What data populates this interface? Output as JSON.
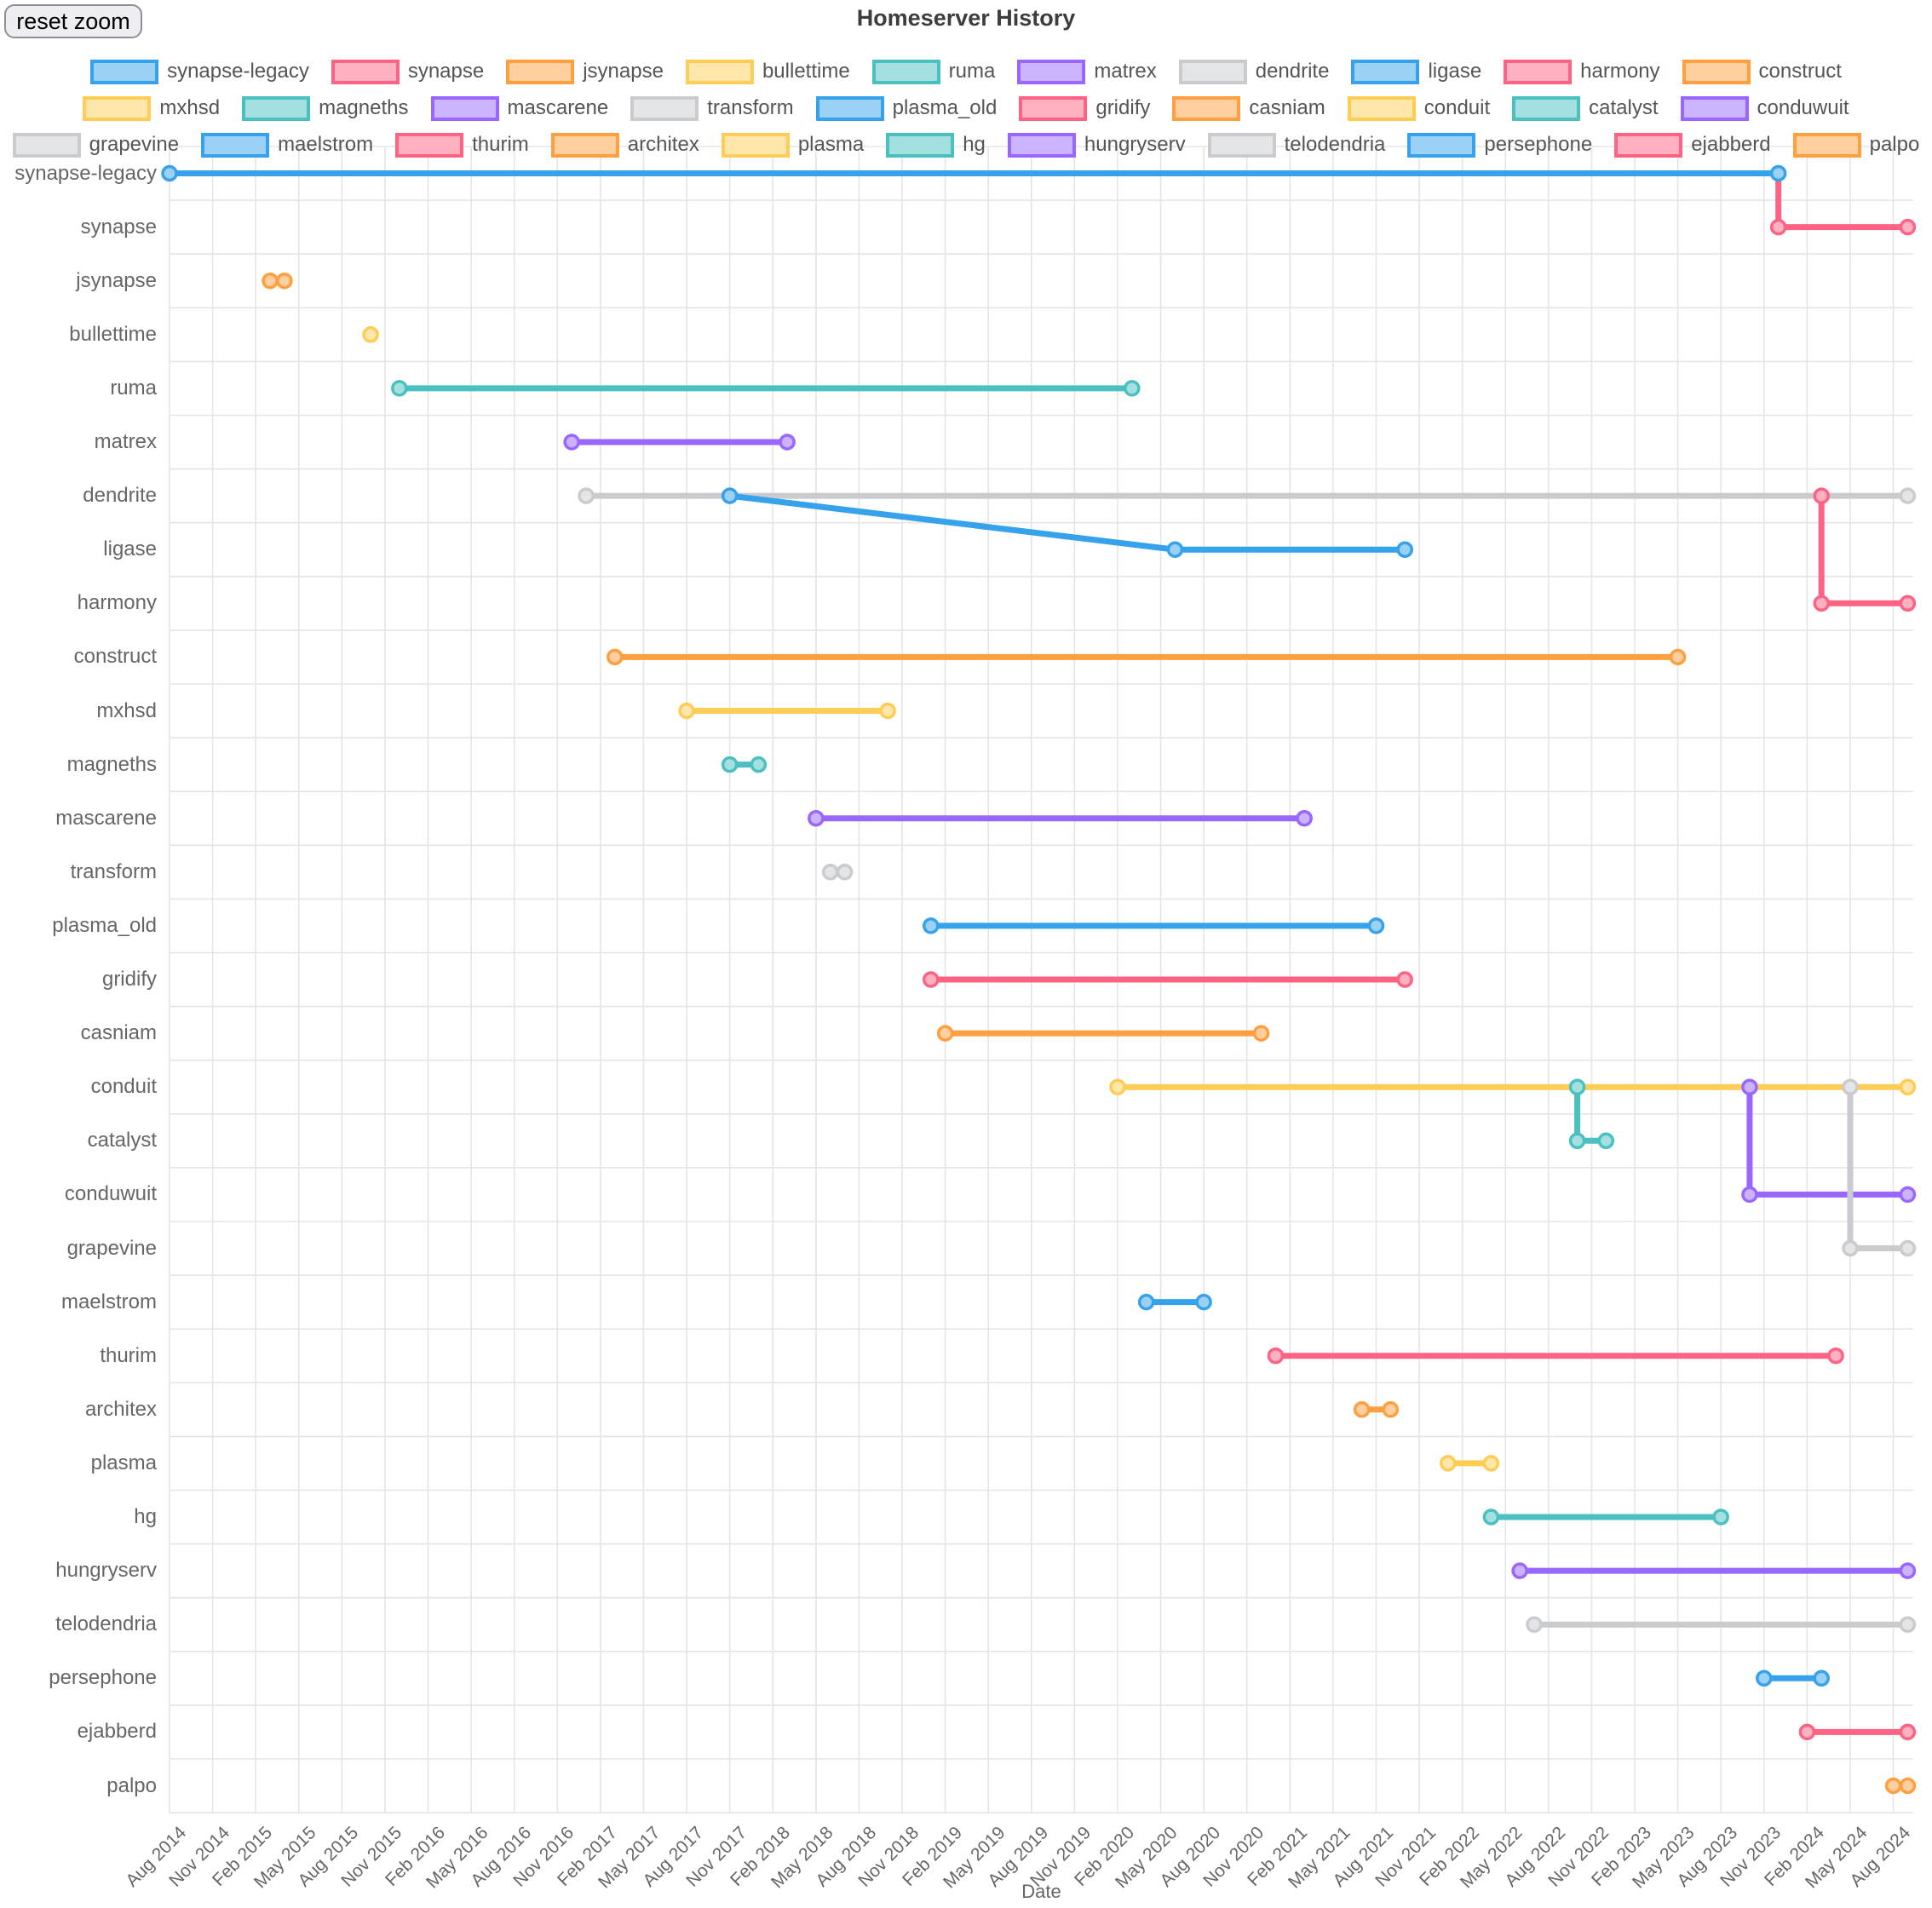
{
  "ui": {
    "reset_zoom_label": "reset zoom"
  },
  "chart_data": {
    "type": "line",
    "title": "Homeserver History",
    "xlabel": "Date",
    "x_ticks": [
      "Aug 2014",
      "Nov 2014",
      "Feb 2015",
      "May 2015",
      "Aug 2015",
      "Nov 2015",
      "Feb 2016",
      "May 2016",
      "Aug 2016",
      "Nov 2016",
      "Feb 2017",
      "May 2017",
      "Aug 2017",
      "Nov 2017",
      "Feb 2018",
      "May 2018",
      "Aug 2018",
      "Nov 2018",
      "Feb 2019",
      "May 2019",
      "Aug 2019",
      "Nov 2019",
      "Feb 2020",
      "May 2020",
      "Aug 2020",
      "Nov 2020",
      "Feb 2021",
      "May 2021",
      "Aug 2021",
      "Nov 2021",
      "Feb 2022",
      "May 2022",
      "Aug 2022",
      "Nov 2022",
      "Feb 2023",
      "May 2023",
      "Aug 2023",
      "Nov 2023",
      "Feb 2024",
      "May 2024",
      "Aug 2024"
    ],
    "x_range": {
      "first_tick": "2014-08",
      "last_tick": "2024-08",
      "tick_interval_months": 3,
      "data_end": "2024-09"
    },
    "grid": true,
    "legend_position": "top",
    "palette": {
      "blue": "#36A2EB",
      "pink": "#FF6384",
      "orange": "#FF9F40",
      "yellow": "#FFCD56",
      "teal": "#4BC0C0",
      "purple": "#9966FF",
      "grey": "#C9CBCF"
    },
    "rows": [
      "synapse-legacy",
      "synapse",
      "jsynapse",
      "bullettime",
      "ruma",
      "matrex",
      "dendrite",
      "ligase",
      "harmony",
      "construct",
      "mxhsd",
      "magneths",
      "mascarene",
      "transform",
      "plasma_old",
      "gridify",
      "casniam",
      "conduit",
      "catalyst",
      "conduwuit",
      "grapevine",
      "maelstrom",
      "thurim",
      "architex",
      "plasma",
      "hg",
      "hungryserv",
      "telodendria",
      "persephone",
      "ejabberd",
      "palpo"
    ],
    "series": [
      {
        "name": "synapse-legacy",
        "color": "blue",
        "points": [
          {
            "date": "2014-08",
            "row": "synapse-legacy"
          },
          {
            "date": "2023-12",
            "row": "synapse-legacy"
          }
        ]
      },
      {
        "name": "synapse",
        "color": "pink",
        "skip_first_marker": true,
        "points": [
          {
            "date": "2023-12",
            "row": "synapse-legacy"
          },
          {
            "date": "2023-12",
            "row": "synapse"
          },
          {
            "date": "2024-09",
            "row": "synapse"
          }
        ]
      },
      {
        "name": "jsynapse",
        "color": "orange",
        "points": [
          {
            "date": "2015-03",
            "row": "jsynapse"
          },
          {
            "date": "2015-04",
            "row": "jsynapse"
          }
        ]
      },
      {
        "name": "bullettime",
        "color": "yellow",
        "points": [
          {
            "date": "2015-10",
            "row": "bullettime"
          }
        ]
      },
      {
        "name": "ruma",
        "color": "teal",
        "points": [
          {
            "date": "2015-12",
            "row": "ruma"
          },
          {
            "date": "2020-03",
            "row": "ruma"
          }
        ]
      },
      {
        "name": "matrex",
        "color": "purple",
        "points": [
          {
            "date": "2016-12",
            "row": "matrex"
          },
          {
            "date": "2018-03",
            "row": "matrex"
          }
        ]
      },
      {
        "name": "dendrite",
        "color": "grey",
        "points": [
          {
            "date": "2017-01",
            "row": "dendrite"
          },
          {
            "date": "2024-09",
            "row": "dendrite"
          }
        ]
      },
      {
        "name": "ligase",
        "color": "blue",
        "points": [
          {
            "date": "2017-11",
            "row": "dendrite"
          },
          {
            "date": "2020-06",
            "row": "ligase"
          },
          {
            "date": "2021-10",
            "row": "ligase"
          }
        ]
      },
      {
        "name": "harmony",
        "color": "pink",
        "points": [
          {
            "date": "2024-03",
            "row": "dendrite"
          },
          {
            "date": "2024-03",
            "row": "harmony"
          },
          {
            "date": "2024-09",
            "row": "harmony"
          }
        ]
      },
      {
        "name": "construct",
        "color": "orange",
        "points": [
          {
            "date": "2017-03",
            "row": "construct"
          },
          {
            "date": "2023-05",
            "row": "construct"
          }
        ]
      },
      {
        "name": "mxhsd",
        "color": "yellow",
        "points": [
          {
            "date": "2017-08",
            "row": "mxhsd"
          },
          {
            "date": "2018-10",
            "row": "mxhsd"
          }
        ]
      },
      {
        "name": "magneths",
        "color": "teal",
        "points": [
          {
            "date": "2017-11",
            "row": "magneths"
          },
          {
            "date": "2018-01",
            "row": "magneths"
          }
        ]
      },
      {
        "name": "mascarene",
        "color": "purple",
        "points": [
          {
            "date": "2018-05",
            "row": "mascarene"
          },
          {
            "date": "2021-03",
            "row": "mascarene"
          }
        ]
      },
      {
        "name": "transform",
        "color": "grey",
        "points": [
          {
            "date": "2018-06",
            "row": "transform"
          },
          {
            "date": "2018-07",
            "row": "transform"
          }
        ]
      },
      {
        "name": "plasma_old",
        "color": "blue",
        "points": [
          {
            "date": "2019-01",
            "row": "plasma_old"
          },
          {
            "date": "2021-08",
            "row": "plasma_old"
          }
        ]
      },
      {
        "name": "gridify",
        "color": "pink",
        "points": [
          {
            "date": "2019-01",
            "row": "gridify"
          },
          {
            "date": "2021-10",
            "row": "gridify"
          }
        ]
      },
      {
        "name": "casniam",
        "color": "orange",
        "points": [
          {
            "date": "2019-02",
            "row": "casniam"
          },
          {
            "date": "2020-12",
            "row": "casniam"
          }
        ]
      },
      {
        "name": "conduit",
        "color": "yellow",
        "points": [
          {
            "date": "2020-02",
            "row": "conduit"
          },
          {
            "date": "2024-09",
            "row": "conduit"
          }
        ]
      },
      {
        "name": "catalyst",
        "color": "teal",
        "points": [
          {
            "date": "2022-10",
            "row": "conduit"
          },
          {
            "date": "2022-10",
            "row": "catalyst"
          },
          {
            "date": "2022-12",
            "row": "catalyst"
          }
        ]
      },
      {
        "name": "conduwuit",
        "color": "purple",
        "points": [
          {
            "date": "2023-10",
            "row": "conduit"
          },
          {
            "date": "2023-10",
            "row": "conduwuit"
          },
          {
            "date": "2024-09",
            "row": "conduwuit"
          }
        ]
      },
      {
        "name": "grapevine",
        "color": "grey",
        "points": [
          {
            "date": "2024-05",
            "row": "conduit"
          },
          {
            "date": "2024-05",
            "row": "grapevine"
          },
          {
            "date": "2024-09",
            "row": "grapevine"
          }
        ]
      },
      {
        "name": "maelstrom",
        "color": "blue",
        "points": [
          {
            "date": "2020-04",
            "row": "maelstrom"
          },
          {
            "date": "2020-08",
            "row": "maelstrom"
          }
        ]
      },
      {
        "name": "thurim",
        "color": "pink",
        "points": [
          {
            "date": "2021-01",
            "row": "thurim"
          },
          {
            "date": "2024-04",
            "row": "thurim"
          }
        ]
      },
      {
        "name": "architex",
        "color": "orange",
        "points": [
          {
            "date": "2021-07",
            "row": "architex"
          },
          {
            "date": "2021-09",
            "row": "architex"
          }
        ]
      },
      {
        "name": "plasma",
        "color": "yellow",
        "points": [
          {
            "date": "2022-01",
            "row": "plasma"
          },
          {
            "date": "2022-04",
            "row": "plasma"
          }
        ]
      },
      {
        "name": "hg",
        "color": "teal",
        "points": [
          {
            "date": "2022-04",
            "row": "hg"
          },
          {
            "date": "2023-08",
            "row": "hg"
          }
        ]
      },
      {
        "name": "hungryserv",
        "color": "purple",
        "points": [
          {
            "date": "2022-06",
            "row": "hungryserv"
          },
          {
            "date": "2024-09",
            "row": "hungryserv"
          }
        ]
      },
      {
        "name": "telodendria",
        "color": "grey",
        "points": [
          {
            "date": "2022-07",
            "row": "telodendria"
          },
          {
            "date": "2024-09",
            "row": "telodendria"
          }
        ]
      },
      {
        "name": "persephone",
        "color": "blue",
        "points": [
          {
            "date": "2023-11",
            "row": "persephone"
          },
          {
            "date": "2024-03",
            "row": "persephone"
          }
        ]
      },
      {
        "name": "ejabberd",
        "color": "pink",
        "points": [
          {
            "date": "2024-02",
            "row": "ejabberd"
          },
          {
            "date": "2024-09",
            "row": "ejabberd"
          }
        ]
      },
      {
        "name": "palpo",
        "color": "orange",
        "points": [
          {
            "date": "2024-08",
            "row": "palpo"
          },
          {
            "date": "2024-09",
            "row": "palpo"
          }
        ]
      }
    ],
    "legend_rows": [
      [
        "synapse-legacy",
        "synapse",
        "jsynapse",
        "bullettime",
        "ruma",
        "matrex",
        "dendrite",
        "ligase",
        "harmony",
        "construct"
      ],
      [
        "mxhsd",
        "magneths",
        "mascarene",
        "transform",
        "plasma_old",
        "gridify",
        "casniam",
        "conduit",
        "catalyst",
        "conduwuit"
      ],
      [
        "grapevine",
        "maelstrom",
        "thurim",
        "architex",
        "plasma",
        "hg",
        "hungryserv",
        "telodendria",
        "persephone",
        "ejabberd",
        "palpo"
      ]
    ]
  }
}
